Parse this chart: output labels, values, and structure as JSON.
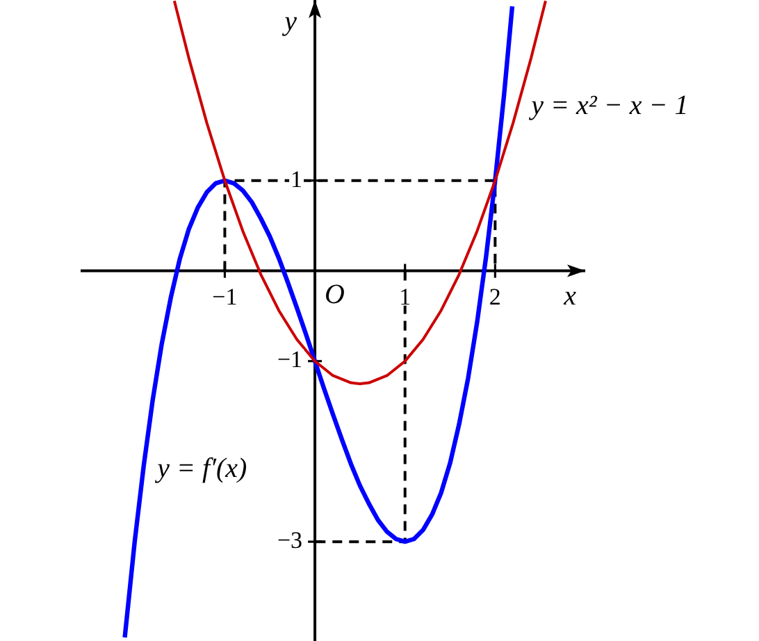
{
  "chart_data": {
    "type": "line",
    "xlabel": "x",
    "ylabel": "y",
    "xlim": [
      -2.6,
      3.0
    ],
    "ylim": [
      -4.1,
      3.0
    ],
    "xticks": [
      {
        "value": -1,
        "label": "−1"
      },
      1,
      2
    ],
    "yticks": [
      {
        "value": -3,
        "label": "−3"
      },
      {
        "value": -1,
        "label": "−1"
      },
      1
    ],
    "grid": false,
    "legend": false,
    "marker": "none",
    "line_style": "solid",
    "annotations": [
      "O"
    ],
    "series": [
      {
        "name": "y = x² − x − 1",
        "color": "#cc0000",
        "x": [
          -1.56,
          -1.4,
          -1.2,
          -1.0,
          -0.8,
          -0.6,
          -0.4,
          -0.2,
          0,
          0.2,
          0.4,
          0.5,
          0.6,
          0.8,
          1.0,
          1.2,
          1.4,
          1.6,
          1.8,
          2.0,
          2.2,
          2.4,
          2.56
        ],
        "values": [
          2.99,
          2.36,
          1.64,
          1,
          0.44,
          -0.04,
          -0.44,
          -0.76,
          -1,
          -1.16,
          -1.24,
          -1.25,
          -1.24,
          -1.16,
          -1,
          -0.76,
          -0.44,
          -0.04,
          0.44,
          1,
          1.64,
          2.36,
          2.99
        ]
      },
      {
        "name": "y = f′(x)",
        "color": "#0000ff",
        "x": [
          -2.11,
          -2.0,
          -1.9,
          -1.8,
          -1.7,
          -1.6,
          -1.5,
          -1.4,
          -1.3,
          -1.2,
          -1.1,
          -1.0,
          -0.9,
          -0.8,
          -0.7,
          -0.6,
          -0.5,
          -0.4,
          -0.3,
          -0.2,
          -0.1,
          0,
          0.1,
          0.2,
          0.3,
          0.4,
          0.5,
          0.6,
          0.7,
          0.8,
          0.9,
          1.0,
          1.1,
          1.2,
          1.3,
          1.4,
          1.5,
          1.6,
          1.7,
          1.8,
          1.9,
          2.0,
          2.1,
          2.19
        ],
        "values": [
          -4.06,
          -3,
          -2.16,
          -1.43,
          -0.81,
          -0.3,
          0.13,
          0.46,
          0.7,
          0.87,
          0.97,
          1,
          0.97,
          0.89,
          0.76,
          0.58,
          0.38,
          0.14,
          -0.13,
          -0.41,
          -0.7,
          -1,
          -1.3,
          -1.59,
          -1.87,
          -2.14,
          -2.38,
          -2.58,
          -2.76,
          -2.89,
          -2.97,
          -3,
          -2.97,
          -2.87,
          -2.7,
          -2.46,
          -2.13,
          -1.7,
          -1.19,
          -0.57,
          0.16,
          1,
          1.96,
          2.93
        ]
      },
      {
        "color": "#000000",
        "line_style": "dashed",
        "x": [
          -1,
          -1,
          2,
          2
        ],
        "values": [
          0,
          1,
          1,
          0
        ]
      },
      {
        "color": "#000000",
        "line_style": "dashed",
        "x": [
          1,
          1,
          0
        ],
        "values": [
          0,
          -3,
          -3
        ]
      }
    ]
  }
}
